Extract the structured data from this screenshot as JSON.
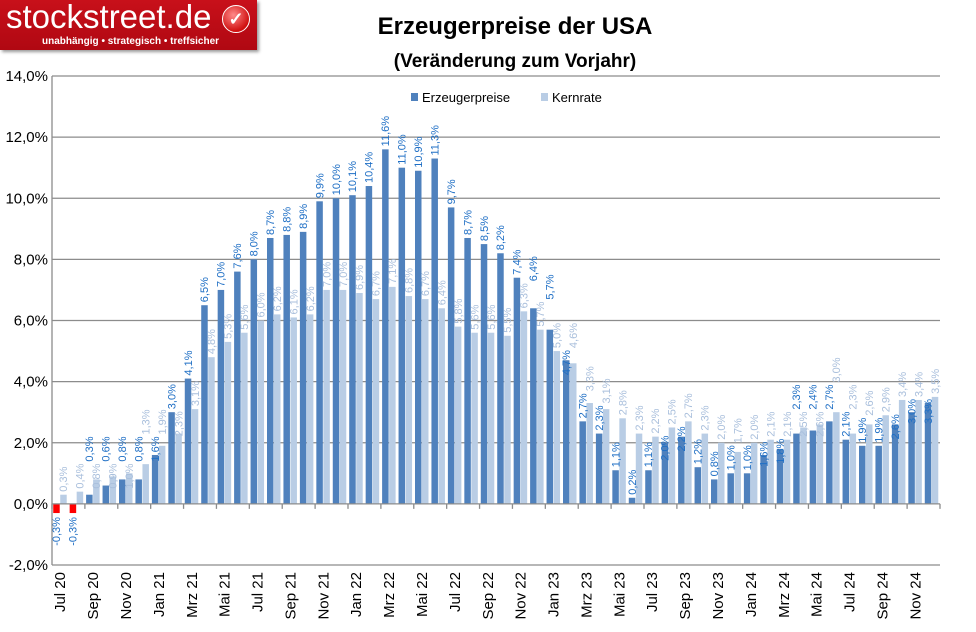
{
  "logo": {
    "brand": "stockstreet.de",
    "tagline": "unabhängig • strategisch • treffsicher",
    "icon": "checkmark-icon"
  },
  "chart_data": {
    "type": "bar",
    "title": "Erzeugerpreise der USA",
    "subtitle": "(Veränderung zum Vorjahr)",
    "ylim": [
      -2,
      14
    ],
    "yticks": [
      "-2,0%",
      "0,0%",
      "2,0%",
      "4,0%",
      "6,0%",
      "8,0%",
      "10,0%",
      "12,0%",
      "14,0%"
    ],
    "grid": true,
    "legend_position": "top-center",
    "colors": {
      "Erzeugerpreise": "#4f81bd",
      "Kernrate": "#b9cde5",
      "negative": "#ff0000"
    },
    "categories": [
      "Jul 20",
      "Aug 20",
      "Sep 20",
      "Okt 20",
      "Nov 20",
      "Dez 20",
      "Jan 21",
      "Feb 21",
      "Mrz 21",
      "Apr 21",
      "Mai 21",
      "Jun 21",
      "Jul 21",
      "Aug 21",
      "Sep 21",
      "Okt 21",
      "Nov 21",
      "Dez 21",
      "Jan 22",
      "Feb 22",
      "Mrz 22",
      "Apr 22",
      "Mai 22",
      "Jun 22",
      "Jul 22",
      "Aug 22",
      "Sep 22",
      "Okt 22",
      "Nov 22",
      "Dez 22",
      "Jan 23",
      "Feb 23",
      "Mrz 23",
      "Apr 23",
      "Mai 23",
      "Jun 23",
      "Jul 23",
      "Aug 23",
      "Sep 23",
      "Okt 23",
      "Nov 23",
      "Dez 23",
      "Jan 24",
      "Feb 24",
      "Mrz 24",
      "Apr 24",
      "Mai 24",
      "Jun 24",
      "Jul 24",
      "Aug 24",
      "Sep 24",
      "Okt 24",
      "Nov 24",
      "Dez 24"
    ],
    "tick_labels": [
      "Jul 20",
      "Sep 20",
      "Nov 20",
      "Jan 21",
      "Mrz 21",
      "Mai 21",
      "Jul 21",
      "Sep 21",
      "Nov 21",
      "Jan 22",
      "Mrz 22",
      "Mai 22",
      "Jul 22",
      "Sep 22",
      "Nov 22",
      "Jan 23",
      "Mrz 23",
      "Mai 23",
      "Jul 23",
      "Sep 23",
      "Nov 23",
      "Jan 24",
      "Mrz 24",
      "Mai 24",
      "Jul 24",
      "Sep 24",
      "Nov 24"
    ],
    "series": [
      {
        "name": "Erzeugerpreise",
        "values": [
          -0.3,
          -0.3,
          0.3,
          0.6,
          0.8,
          0.8,
          1.6,
          3.0,
          4.1,
          6.5,
          7.0,
          7.6,
          8.0,
          8.7,
          8.8,
          8.9,
          9.9,
          10.0,
          10.1,
          10.4,
          11.6,
          11.0,
          10.9,
          11.3,
          9.7,
          8.7,
          8.5,
          8.2,
          7.4,
          6.4,
          5.7,
          4.7,
          2.7,
          2.3,
          1.1,
          0.2,
          1.1,
          2.0,
          2.2,
          1.2,
          0.8,
          1.0,
          1.0,
          1.6,
          1.8,
          2.3,
          2.4,
          2.7,
          2.1,
          1.9,
          1.9,
          2.6,
          3.0,
          3.3
        ]
      },
      {
        "name": "Kernrate",
        "values": [
          0.3,
          0.4,
          0.8,
          0.9,
          1.0,
          1.3,
          1.9,
          2.3,
          3.1,
          4.8,
          5.3,
          5.6,
          6.0,
          6.2,
          6.1,
          6.2,
          7.0,
          7.0,
          6.9,
          6.7,
          7.1,
          6.8,
          6.7,
          6.4,
          5.8,
          5.6,
          5.6,
          5.5,
          6.3,
          5.7,
          5.0,
          4.6,
          3.3,
          3.1,
          2.8,
          2.3,
          2.2,
          2.5,
          2.7,
          2.3,
          2.0,
          1.7,
          2.0,
          2.1,
          2.1,
          2.5,
          2.6,
          3.0,
          2.3,
          2.6,
          2.9,
          3.4,
          3.4,
          3.5
        ]
      }
    ]
  }
}
